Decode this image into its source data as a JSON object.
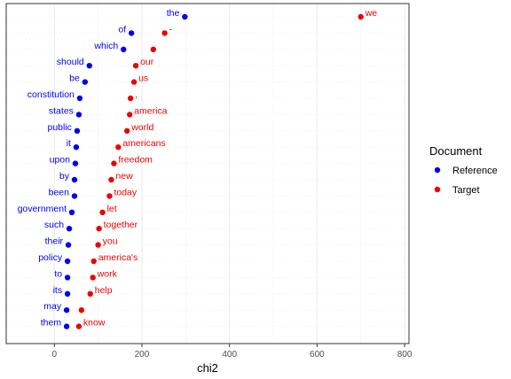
{
  "chart_data": {
    "type": "scatter",
    "xlabel": "chi2",
    "xlim": [
      -110,
      810
    ],
    "xticks": [
      0,
      200,
      400,
      600,
      800
    ],
    "grid": true,
    "legend": {
      "title": "Document",
      "placement": "right",
      "entries": [
        {
          "name": "Reference",
          "color": "#0000ee"
        },
        {
          "name": "Target",
          "color": "#ee0000"
        }
      ]
    },
    "series": [
      {
        "name": "Reference",
        "color": "#0000ee",
        "points": [
          {
            "label": "the",
            "x": 298
          },
          {
            "label": "of",
            "x": 176
          },
          {
            "label": "which",
            "x": 158
          },
          {
            "label": "should",
            "x": 80
          },
          {
            "label": "be",
            "x": 70
          },
          {
            "label": "constitution",
            "x": 58
          },
          {
            "label": "states",
            "x": 56
          },
          {
            "label": "public",
            "x": 52
          },
          {
            "label": "it",
            "x": 50
          },
          {
            "label": "upon",
            "x": 48
          },
          {
            "label": "by",
            "x": 46
          },
          {
            "label": "been",
            "x": 46
          },
          {
            "label": "government",
            "x": 40
          },
          {
            "label": "such",
            "x": 34
          },
          {
            "label": "their",
            "x": 32
          },
          {
            "label": "policy",
            "x": 30
          },
          {
            "label": "to",
            "x": 30
          },
          {
            "label": "its",
            "x": 30
          },
          {
            "label": "may",
            "x": 28
          },
          {
            "label": "them",
            "x": 28
          }
        ]
      },
      {
        "name": "Target",
        "color": "#ee0000",
        "points": [
          {
            "label": "we",
            "x": 700
          },
          {
            "label": "-",
            "x": 252
          },
          {
            "label": "",
            "x": 226
          },
          {
            "label": "our",
            "x": 186
          },
          {
            "label": "us",
            "x": 182
          },
          {
            "label": ",",
            "x": 174
          },
          {
            "label": "america",
            "x": 172
          },
          {
            "label": "world",
            "x": 166
          },
          {
            "label": "americans",
            "x": 146
          },
          {
            "label": "freedom",
            "x": 136
          },
          {
            "label": "new",
            "x": 130
          },
          {
            "label": "today",
            "x": 126
          },
          {
            "label": "let",
            "x": 110
          },
          {
            "label": "together",
            "x": 102
          },
          {
            "label": "you",
            "x": 100
          },
          {
            "label": "america's",
            "x": 90
          },
          {
            "label": "work",
            "x": 88
          },
          {
            "label": "help",
            "x": 82
          },
          {
            "label": "",
            "x": 62
          },
          {
            "label": "know",
            "x": 56
          }
        ]
      }
    ]
  }
}
